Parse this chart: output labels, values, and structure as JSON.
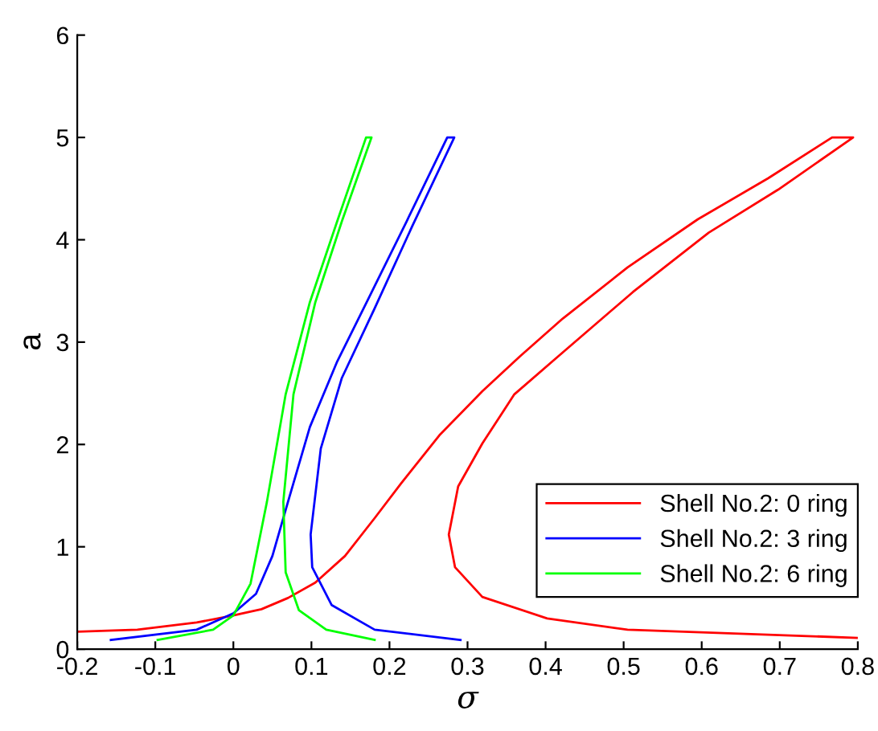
{
  "chart_data": {
    "type": "line",
    "xlabel": "σ",
    "ylabel": "a",
    "xlim": [
      -0.2,
      0.8
    ],
    "xticks": [
      {
        "value": -0.2,
        "label": "-0.2"
      },
      {
        "value": -0.1,
        "label": "-0.1"
      },
      0,
      0.1,
      0.2,
      0.3,
      0.4,
      0.5,
      0.6,
      0.7,
      0.8
    ],
    "ylim": [
      0,
      6
    ],
    "yticks": [
      0,
      1,
      2,
      3,
      4,
      5,
      6
    ],
    "grid": false,
    "legend": "bottom right",
    "marker": "none",
    "line_style": "solid",
    "series": [
      {
        "name": "Shell No.2: 0 ring",
        "color": "#ff0000",
        "x": [
          -0.2,
          -0.123,
          -0.047,
          0.0,
          0.036,
          0.07,
          0.105,
          0.143,
          0.181,
          0.215,
          0.264,
          0.319,
          0.367,
          0.422,
          0.505,
          0.595,
          0.685,
          0.767,
          0.794,
          0.698,
          0.609,
          0.512,
          0.416,
          0.36,
          0.319,
          0.288,
          0.276,
          0.284,
          0.319,
          0.402,
          0.505,
          0.8
        ],
        "values": [
          0.17,
          0.19,
          0.26,
          0.33,
          0.39,
          0.5,
          0.65,
          0.91,
          1.28,
          1.62,
          2.09,
          2.52,
          2.86,
          3.23,
          3.73,
          4.2,
          4.6,
          5.0,
          5.0,
          4.49,
          4.07,
          3.49,
          2.86,
          2.49,
          2.01,
          1.59,
          1.12,
          0.8,
          0.51,
          0.3,
          0.19,
          0.11
        ]
      },
      {
        "name": "Shell No.2: 3 ring",
        "color": "#0000ff",
        "x": [
          -0.157,
          -0.047,
          0.0,
          0.029,
          0.05,
          0.07,
          0.098,
          0.133,
          0.174,
          0.222,
          0.274,
          0.283,
          0.229,
          0.181,
          0.139,
          0.112,
          0.099,
          0.101,
          0.126,
          0.181,
          0.291
        ],
        "values": [
          0.09,
          0.19,
          0.35,
          0.54,
          0.91,
          1.44,
          2.17,
          2.81,
          3.44,
          4.18,
          5.0,
          5.0,
          4.13,
          3.33,
          2.65,
          1.96,
          1.12,
          0.8,
          0.43,
          0.19,
          0.09
        ]
      },
      {
        "name": "Shell No.2: 6 ring",
        "color": "#00ff00",
        "x": [
          -0.097,
          -0.026,
          0.0,
          0.022,
          0.043,
          0.067,
          0.098,
          0.133,
          0.17,
          0.177,
          0.139,
          0.105,
          0.077,
          0.064,
          0.067,
          0.084,
          0.119,
          0.181
        ],
        "values": [
          0.09,
          0.19,
          0.33,
          0.64,
          1.44,
          2.49,
          3.39,
          4.18,
          5.0,
          5.0,
          4.18,
          3.39,
          2.49,
          1.44,
          0.75,
          0.38,
          0.19,
          0.09
        ]
      }
    ]
  }
}
